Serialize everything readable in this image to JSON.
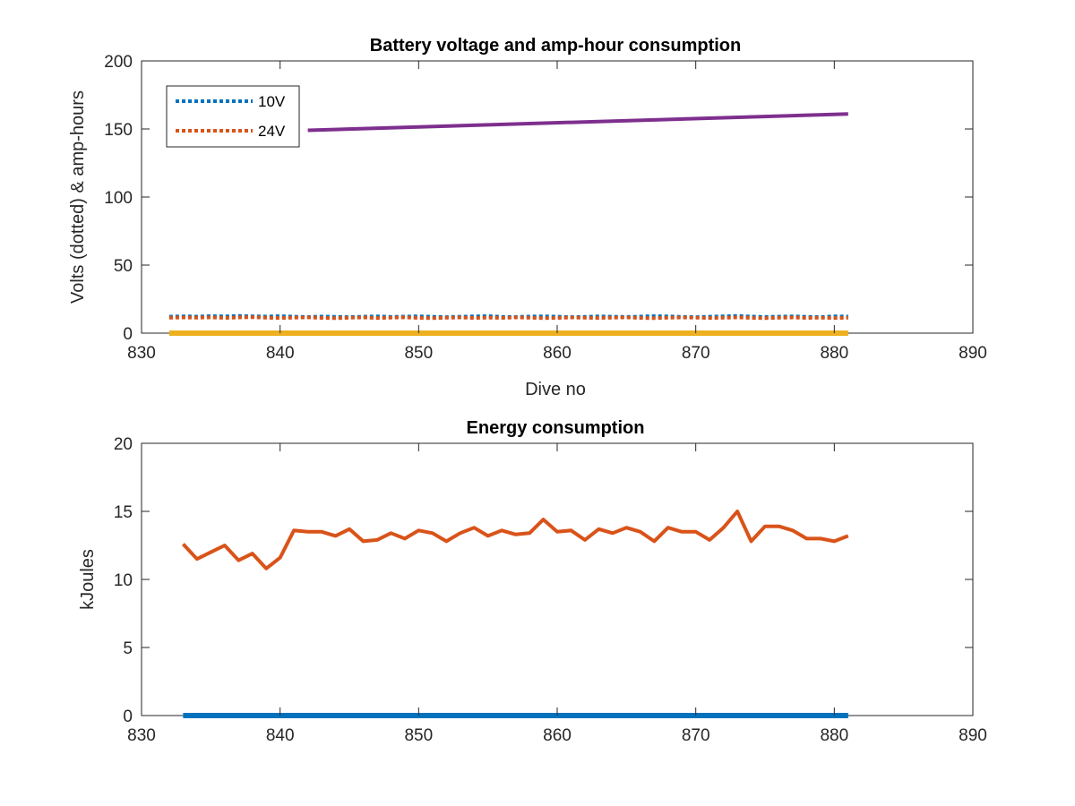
{
  "chart_data": [
    {
      "type": "line",
      "title": "Battery voltage and amp-hour consumption",
      "xlabel": "Dive no",
      "ylabel": "Volts (dotted) & amp-hours",
      "xlim": [
        830,
        890
      ],
      "ylim": [
        0,
        200
      ],
      "xticks": [
        "830",
        "840",
        "850",
        "860",
        "870",
        "880",
        "890"
      ],
      "yticks": [
        "0",
        "50",
        "100",
        "150",
        "200"
      ],
      "grid": false,
      "legend": {
        "placement": "top-left",
        "entries": [
          "10V",
          "24V"
        ]
      },
      "series": [
        {
          "name": "10V",
          "style": "dotted",
          "color": "#0072BD",
          "x": [
            832,
            833,
            834,
            835,
            836,
            837,
            838,
            839,
            840,
            841,
            842,
            843,
            844,
            845,
            846,
            847,
            848,
            849,
            850,
            851,
            852,
            853,
            854,
            855,
            856,
            857,
            858,
            859,
            860,
            861,
            862,
            863,
            864,
            865,
            866,
            867,
            868,
            869,
            870,
            871,
            872,
            873,
            874,
            875,
            876,
            877,
            878,
            879,
            880,
            881
          ],
          "values": [
            12.1,
            12.4,
            12.2,
            12.5,
            12.3,
            12.6,
            12.4,
            12.2,
            12.5,
            12.1,
            11.9,
            12.2,
            12.0,
            11.8,
            12.1,
            12.3,
            11.9,
            12.2,
            12.4,
            12.0,
            11.8,
            12.1,
            12.3,
            12.5,
            12.0,
            11.9,
            12.2,
            12.4,
            12.1,
            11.8,
            12.0,
            12.3,
            12.1,
            11.9,
            12.2,
            12.5,
            12.3,
            12.0,
            11.8,
            12.1,
            12.4,
            12.6,
            12.2,
            11.9,
            12.1,
            12.3,
            12.0,
            11.8,
            12.4,
            12.2
          ]
        },
        {
          "name": "24V",
          "style": "dotted",
          "color": "#D95319",
          "x": [
            832,
            833,
            834,
            835,
            836,
            837,
            838,
            839,
            840,
            841,
            842,
            843,
            844,
            845,
            846,
            847,
            848,
            849,
            850,
            851,
            852,
            853,
            854,
            855,
            856,
            857,
            858,
            859,
            860,
            861,
            862,
            863,
            864,
            865,
            866,
            867,
            868,
            869,
            870,
            871,
            872,
            873,
            874,
            875,
            876,
            877,
            878,
            879,
            880,
            881
          ],
          "values": [
            11.3,
            11.5,
            11.4,
            11.6,
            11.2,
            11.5,
            11.7,
            11.3,
            11.1,
            11.4,
            11.6,
            11.2,
            11.0,
            11.3,
            11.5,
            11.1,
            11.4,
            11.6,
            11.2,
            11.0,
            11.3,
            11.5,
            11.1,
            11.4,
            11.2,
            11.6,
            11.3,
            11.0,
            11.2,
            11.5,
            11.3,
            11.1,
            11.4,
            11.6,
            11.2,
            11.0,
            11.3,
            11.5,
            11.4,
            11.1,
            11.3,
            11.6,
            11.2,
            11.0,
            11.3,
            11.5,
            11.2,
            11.4,
            11.1,
            11.3
          ]
        },
        {
          "style": "solid",
          "color": "#7E2F8E",
          "x": [
            842,
            881
          ],
          "values": [
            149,
            161
          ]
        },
        {
          "style": "solid",
          "color": "#EDB120",
          "x": [
            832,
            881
          ],
          "values": [
            0,
            0
          ]
        }
      ]
    },
    {
      "type": "line",
      "title": "Energy consumption",
      "xlabel": "",
      "ylabel": "kJoules",
      "xlim": [
        830,
        890
      ],
      "ylim": [
        0,
        20
      ],
      "xticks": [
        "830",
        "840",
        "850",
        "860",
        "870",
        "880",
        "890"
      ],
      "yticks": [
        "0",
        "5",
        "10",
        "15",
        "20"
      ],
      "grid": false,
      "series": [
        {
          "style": "solid",
          "color": "#D95319",
          "x": [
            833,
            834,
            835,
            836,
            837,
            838,
            839,
            840,
            841,
            842,
            843,
            844,
            845,
            846,
            847,
            848,
            849,
            850,
            851,
            852,
            853,
            854,
            855,
            856,
            857,
            858,
            859,
            860,
            861,
            862,
            863,
            864,
            865,
            866,
            867,
            868,
            869,
            870,
            871,
            872,
            873,
            874,
            875,
            876,
            877,
            878,
            879,
            880,
            881
          ],
          "values": [
            12.6,
            11.5,
            12.0,
            12.5,
            11.4,
            11.9,
            10.8,
            11.6,
            13.6,
            13.5,
            13.5,
            13.2,
            13.7,
            12.8,
            12.9,
            13.4,
            13.0,
            13.6,
            13.4,
            12.8,
            13.4,
            13.8,
            13.2,
            13.6,
            13.3,
            13.4,
            14.4,
            13.5,
            13.6,
            12.9,
            13.7,
            13.4,
            13.8,
            13.5,
            12.8,
            13.8,
            13.5,
            13.5,
            12.9,
            13.8,
            15.0,
            12.8,
            13.9,
            13.9,
            13.6,
            13.0,
            13.0,
            12.8,
            13.2
          ]
        },
        {
          "style": "solid",
          "color": "#0072BD",
          "x": [
            833,
            881
          ],
          "values": [
            0,
            0
          ]
        }
      ]
    }
  ]
}
